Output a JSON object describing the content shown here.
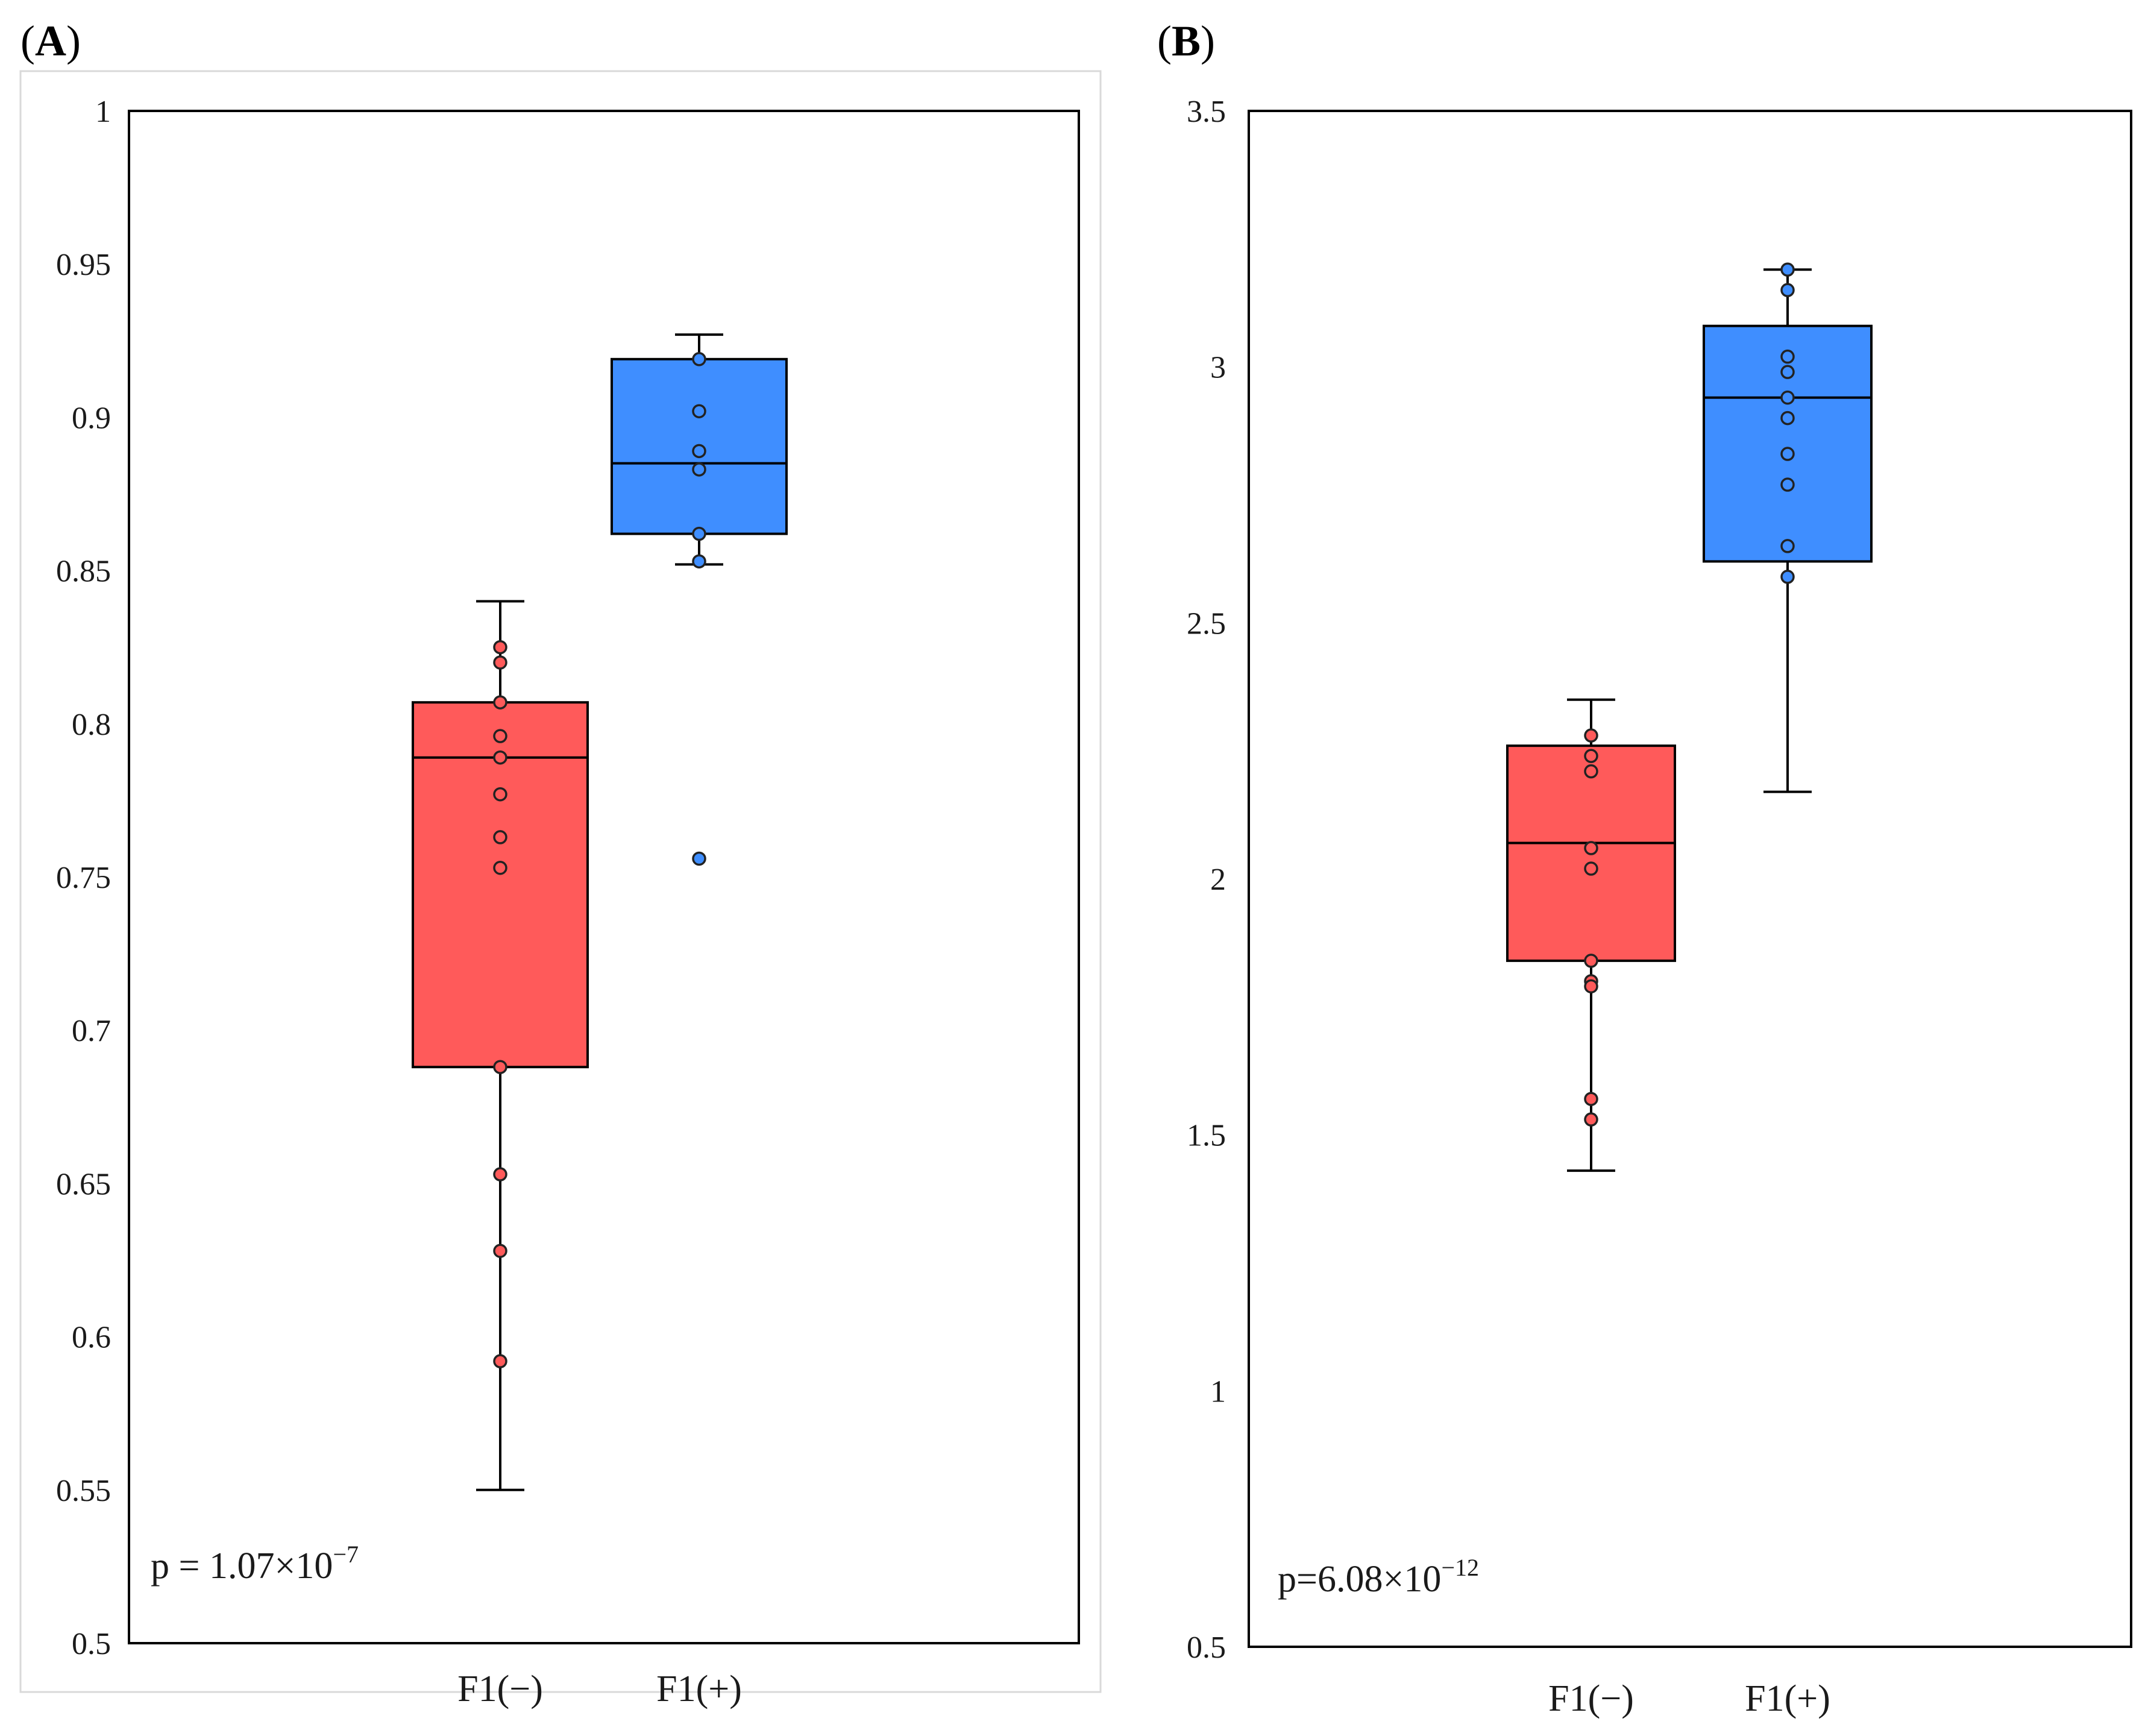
{
  "figure": {
    "panels": [
      "A",
      "B"
    ]
  },
  "chart_data": [
    {
      "type": "box",
      "panel": "A",
      "ylim": [
        0.5,
        1
      ],
      "yticks": [
        "0.5",
        "0.55",
        "0.6",
        "0.65",
        "0.7",
        "0.75",
        "0.8",
        "0.85",
        "0.9",
        "0.95",
        "1"
      ],
      "categories": [
        "F1(−)",
        "F1(+)"
      ],
      "pvalue": {
        "prefix": "p = 1.07×10",
        "exponent": "−7"
      },
      "series": [
        {
          "name": "F1(−)",
          "color": "#ff5a5a",
          "whisker_low": 0.55,
          "q1": 0.688,
          "median": 0.789,
          "q3": 0.807,
          "whisker_high": 0.84,
          "points": [
            0.825,
            0.82,
            0.807,
            0.796,
            0.789,
            0.777,
            0.763,
            0.753,
            0.688,
            0.653,
            0.628,
            0.592
          ],
          "outliers": []
        },
        {
          "name": "F1(+)",
          "color": "#3f8eff",
          "whisker_low": 0.852,
          "q1": 0.862,
          "median": 0.885,
          "q3": 0.919,
          "whisker_high": 0.927,
          "points": [
            0.919,
            0.902,
            0.889,
            0.883,
            0.862,
            0.853
          ],
          "outliers": [
            0.756
          ]
        }
      ]
    },
    {
      "type": "box",
      "panel": "B",
      "ylim": [
        0.5,
        3.5
      ],
      "yticks": [
        "0.5",
        "1",
        "1.5",
        "2",
        "2.5",
        "3",
        "3.5"
      ],
      "categories": [
        "F1(−)",
        "F1(+)"
      ],
      "pvalue": {
        "prefix": "p=6.08×10",
        "exponent": "−12"
      },
      "series": [
        {
          "name": "F1(−)",
          "color": "#ff5a5a",
          "whisker_low": 1.43,
          "q1": 1.84,
          "median": 2.07,
          "q3": 2.26,
          "whisker_high": 2.35,
          "points": [
            2.28,
            2.24,
            2.21,
            2.06,
            2.02,
            1.84,
            1.8,
            1.79,
            1.57,
            1.53
          ],
          "outliers": []
        },
        {
          "name": "F1(+)",
          "color": "#3f8eff",
          "whisker_low": 2.17,
          "q1": 2.62,
          "median": 2.94,
          "q3": 3.08,
          "whisker_high": 3.19,
          "points": [
            3.19,
            3.15,
            3.02,
            2.99,
            2.94,
            2.9,
            2.83,
            2.77,
            2.65,
            2.59
          ],
          "outliers": []
        }
      ]
    }
  ]
}
